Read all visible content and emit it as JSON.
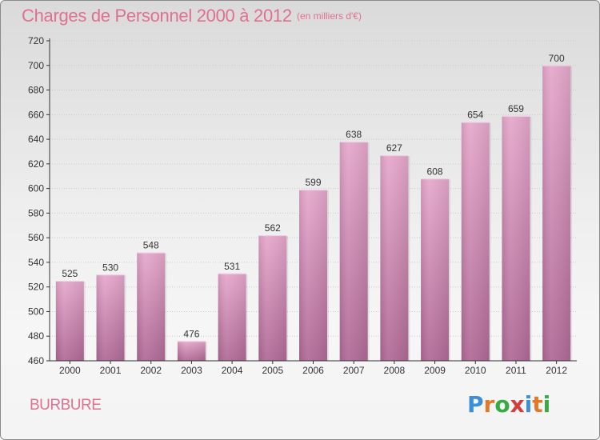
{
  "header": {
    "title": "Charges de Personnel 2000 à 2012",
    "subtitle": "(en milliers d'€)"
  },
  "commune": "BURBURE",
  "logo": {
    "text": "Proxiti",
    "letter_colors": [
      "#3c8fd6",
      "#e07a28",
      "#39a946",
      "#d43c3c",
      "#3c8fd6",
      "#e07a28",
      "#39a946"
    ]
  },
  "colors": {
    "bar_top": "#e6a8cc",
    "bar_bottom": "#b06a96",
    "text": "#e07090"
  },
  "chart_data": {
    "type": "bar",
    "categories": [
      "2000",
      "2001",
      "2002",
      "2003",
      "2004",
      "2005",
      "2006",
      "2007",
      "2008",
      "2009",
      "2010",
      "2011",
      "2012"
    ],
    "values": [
      525,
      530,
      548,
      476,
      531,
      562,
      599,
      638,
      627,
      608,
      654,
      659,
      700
    ],
    "title": "Charges de Personnel 2000 à 2012",
    "xlabel": "",
    "ylabel": "",
    "ylim": [
      460,
      720
    ],
    "yticks": [
      460,
      480,
      500,
      520,
      540,
      560,
      580,
      600,
      620,
      640,
      660,
      680,
      700,
      720
    ],
    "grid": true,
    "data_labels": true
  }
}
